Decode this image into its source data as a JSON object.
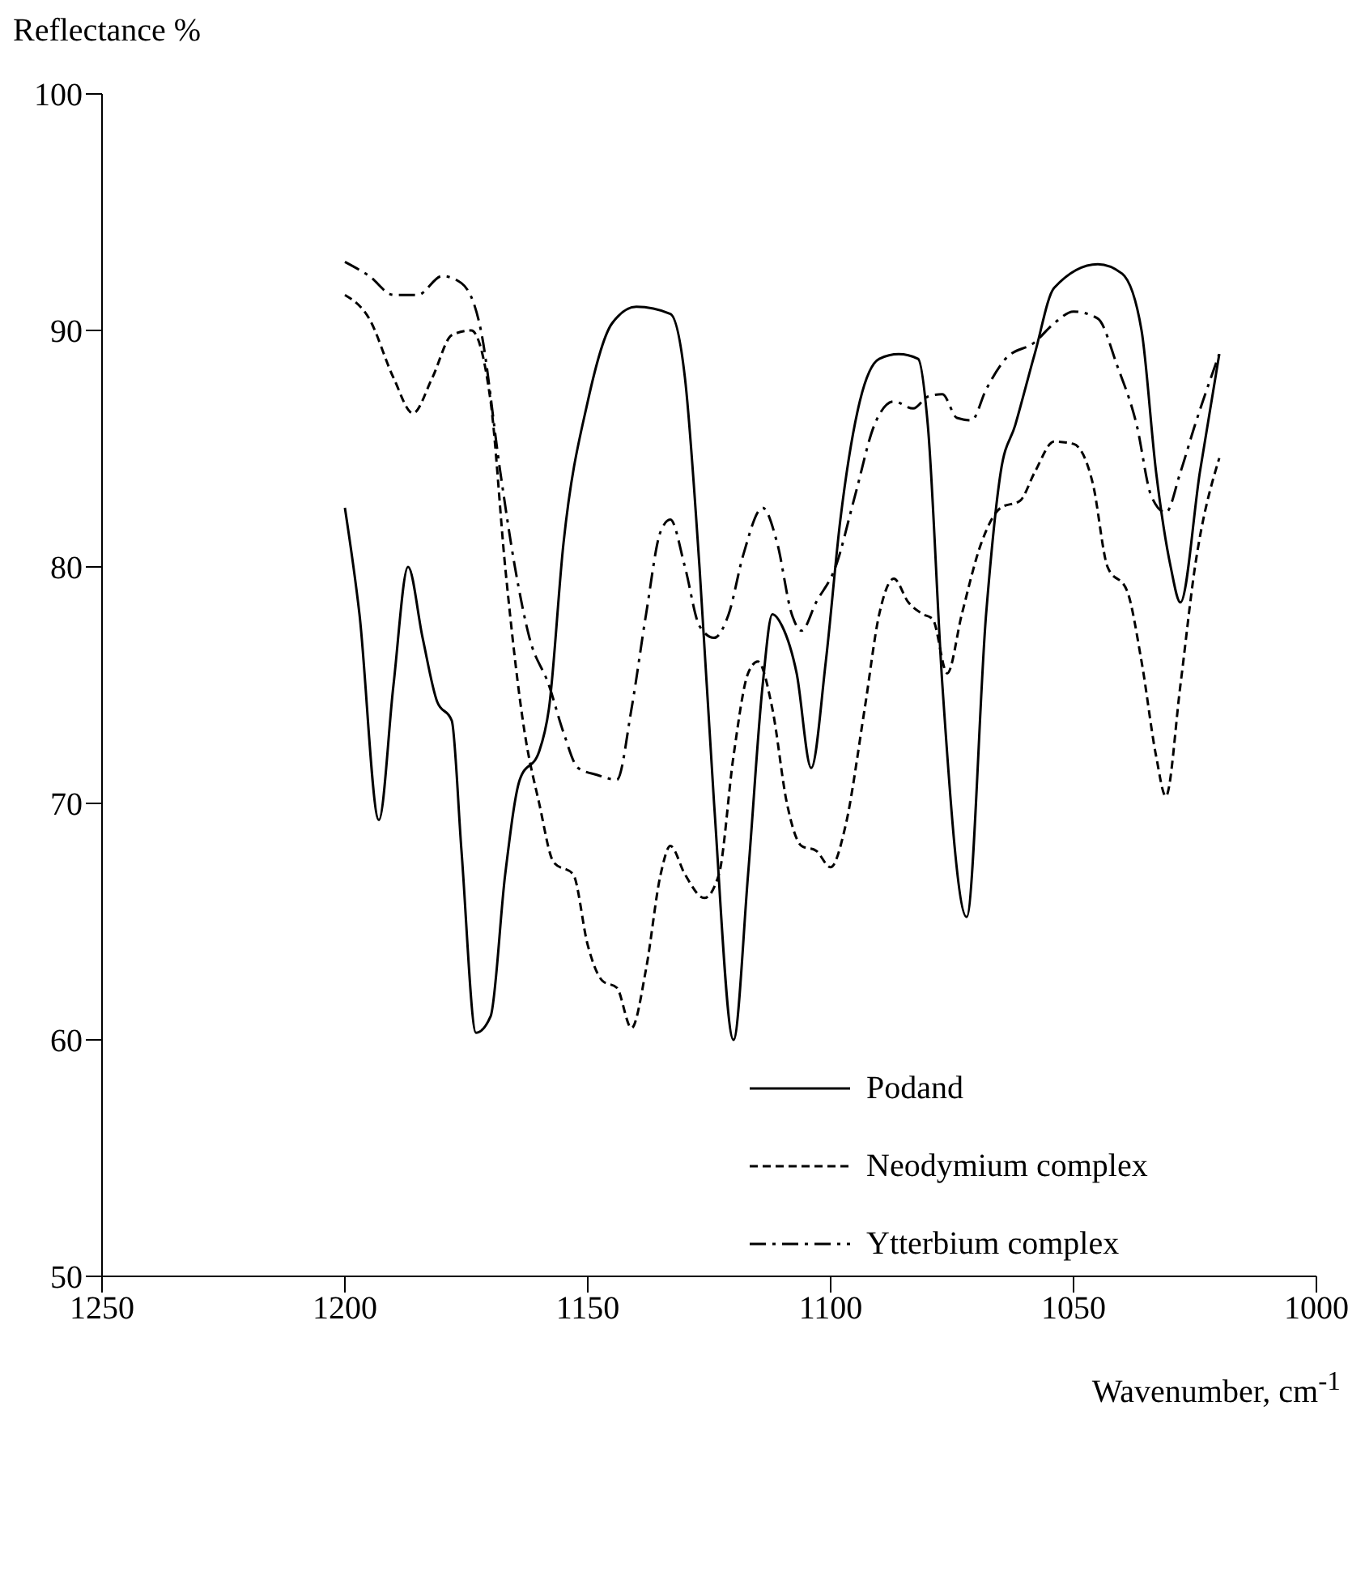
{
  "chart_data": {
    "type": "line",
    "xlabel": "Wavenumber, cm$^{-1}$",
    "ylabel": "Reflectance %",
    "xlim": [
      1250,
      1000
    ],
    "xticks": [
      1250,
      1200,
      1150,
      1100,
      1050,
      1000
    ],
    "ylim": [
      50,
      100
    ],
    "yticks": [
      50,
      60,
      70,
      80,
      90,
      100
    ],
    "grid": false,
    "legend": "bottom right",
    "marker": "none",
    "series": [
      {
        "name": "Podand",
        "color": "#000000",
        "line_style": "solid",
        "x": [
          1200,
          1197,
          1193,
          1190,
          1187,
          1184,
          1181,
          1178,
          1176,
          1173,
          1170,
          1167,
          1164,
          1160,
          1158,
          1155,
          1150,
          1145,
          1140,
          1133,
          1130,
          1127,
          1124,
          1120,
          1117,
          1114,
          1112,
          1110,
          1107,
          1104,
          1101,
          1098,
          1094,
          1090,
          1086,
          1082,
          1080,
          1077,
          1072,
          1068,
          1065,
          1062,
          1058,
          1054,
          1045,
          1040,
          1036,
          1033,
          1030,
          1028,
          1024,
          1020
        ],
        "values": [
          82.5,
          78,
          69.3,
          75,
          80,
          77,
          74.3,
          73.5,
          68,
          60.3,
          61,
          67,
          71,
          72.2,
          74,
          81,
          87,
          90.3,
          91,
          90.7,
          88,
          80,
          70,
          60,
          67,
          75,
          78,
          77.5,
          75.5,
          71.5,
          76,
          82,
          87,
          88.8,
          89,
          88.8,
          86,
          75,
          65.2,
          78,
          84,
          86,
          89,
          91.8,
          92.8,
          92.4,
          90,
          84,
          80,
          78.5,
          84,
          89
        ]
      },
      {
        "name": "Neodymium complex",
        "color": "#000000",
        "line_style": "dashed",
        "x": [
          1200,
          1195,
          1190,
          1186,
          1182,
          1178,
          1174,
          1170,
          1167,
          1163,
          1160,
          1157,
          1153,
          1150,
          1147,
          1144,
          1141,
          1138,
          1135,
          1133,
          1130,
          1126,
          1123,
          1120,
          1117,
          1115,
          1112,
          1109,
          1106,
          1103,
          1100,
          1097,
          1093,
          1090,
          1087,
          1084,
          1081,
          1079,
          1076,
          1073,
          1069,
          1065,
          1061,
          1058,
          1054,
          1050,
          1046,
          1043,
          1039,
          1036,
          1033,
          1031,
          1028,
          1025,
          1020
        ],
        "values": [
          91.5,
          90.5,
          88,
          86.5,
          88,
          89.8,
          90,
          87,
          80,
          73,
          70,
          67.5,
          67,
          64,
          62.5,
          62.2,
          60.5,
          63,
          67,
          68.2,
          67,
          66,
          67,
          72,
          75.5,
          76,
          74,
          70,
          68.2,
          68,
          67.3,
          69,
          74,
          78,
          79.5,
          78.5,
          78,
          77.8,
          75.5,
          78,
          81,
          82.5,
          82.8,
          84,
          85.3,
          85.2,
          83.5,
          80,
          79,
          76,
          72,
          70.3,
          75,
          80,
          84.6
        ]
      },
      {
        "name": "Ytterbium complex",
        "color": "#000000",
        "line_style": "dashdot",
        "x": [
          1200,
          1195,
          1190,
          1185,
          1180,
          1176,
          1172,
          1168,
          1165,
          1162,
          1158,
          1155,
          1152,
          1148,
          1144,
          1141,
          1138,
          1135,
          1133,
          1130,
          1127,
          1124,
          1121,
          1118,
          1114,
          1111,
          1108,
          1106,
          1103,
          1099,
          1095,
          1091,
          1087,
          1083,
          1080,
          1077,
          1074,
          1071,
          1068,
          1064,
          1058,
          1054,
          1050,
          1045,
          1041,
          1037,
          1034,
          1031,
          1028,
          1025,
          1020
        ],
        "values": [
          92.9,
          92.3,
          91.5,
          91.5,
          92.3,
          92,
          90,
          84,
          80,
          77,
          75,
          73,
          71.5,
          71.2,
          71,
          74,
          78,
          81.5,
          82,
          80,
          77.5,
          77,
          78,
          80.5,
          82.5,
          81,
          78,
          77.3,
          78.5,
          80,
          83,
          86,
          87,
          86.7,
          87.2,
          87.3,
          86.3,
          86.2,
          87.5,
          88.8,
          89.5,
          90.3,
          90.8,
          90.5,
          88.5,
          86,
          83,
          82.3,
          84,
          86,
          89
        ]
      }
    ]
  }
}
